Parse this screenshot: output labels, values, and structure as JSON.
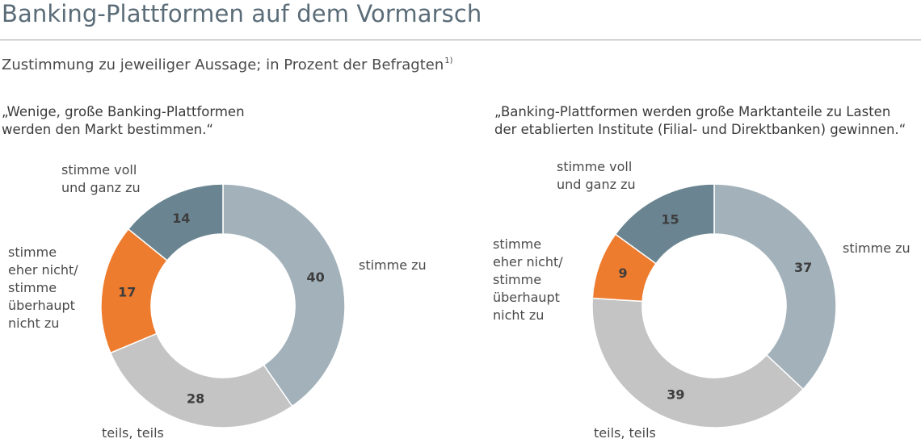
{
  "header": {
    "title": "Banking-Plattformen auf dem Vormarsch",
    "subtitle": "Zustimmung zu jeweiliger Aussage; in Prozent der Befragten",
    "footnote_marker": "1)"
  },
  "colors": {
    "stimme_voll": "#6a8591",
    "stimme_zu": "#a2b1ba",
    "teils": "#c4c4c4",
    "eher_nicht": "#ee7c2e"
  },
  "chart_data": [
    {
      "type": "pie",
      "title_lines": [
        "„Wenige, große Banking-Plattformen",
        "werden den Markt bestimmen.“"
      ],
      "slices": [
        {
          "key": "stimme_zu",
          "label_lines": [
            "stimme zu"
          ],
          "value": 40
        },
        {
          "key": "teils",
          "label_lines": [
            "teils, teils"
          ],
          "value": 28
        },
        {
          "key": "eher_nicht",
          "label_lines": [
            "stimme",
            "eher nicht/",
            "stimme",
            "überhaupt",
            "nicht zu"
          ],
          "value": 17
        },
        {
          "key": "stimme_voll",
          "label_lines": [
            "stimme voll",
            "und ganz zu"
          ],
          "value": 14
        }
      ]
    },
    {
      "type": "pie",
      "title_lines": [
        "„Banking-Plattformen werden große Marktanteile zu Lasten",
        "der etablierten Institute (Filial- und Direktbanken) gewinnen.“"
      ],
      "slices": [
        {
          "key": "stimme_zu",
          "label_lines": [
            "stimme zu"
          ],
          "value": 37
        },
        {
          "key": "teils",
          "label_lines": [
            "teils, teils"
          ],
          "value": 39
        },
        {
          "key": "eher_nicht",
          "label_lines": [
            "stimme",
            "eher nicht/",
            "stimme",
            "überhaupt",
            "nicht zu"
          ],
          "value": 9
        },
        {
          "key": "stimme_voll",
          "label_lines": [
            "stimme voll",
            "und ganz zu"
          ],
          "value": 15
        }
      ]
    }
  ]
}
